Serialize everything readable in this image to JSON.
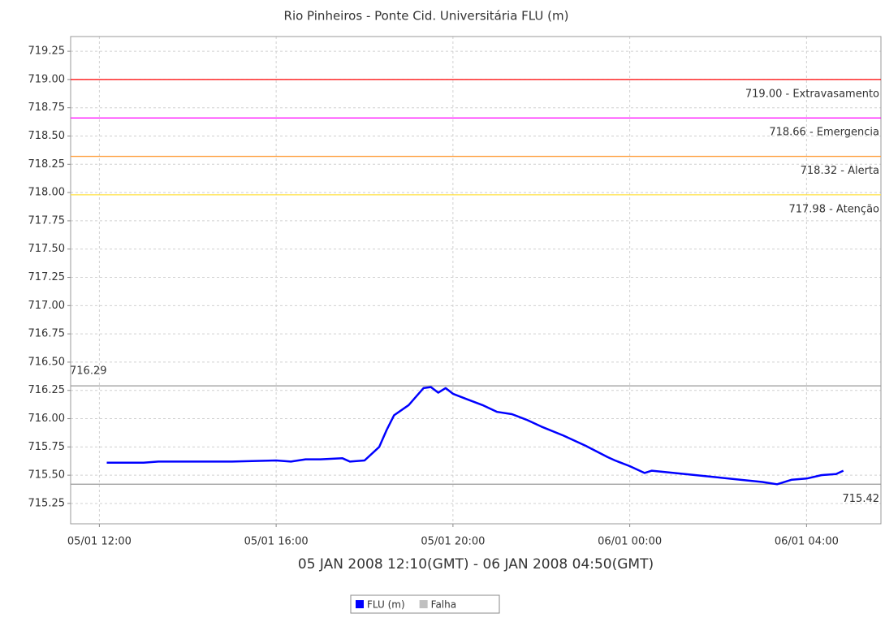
{
  "chart_data": {
    "type": "line",
    "title": "Rio Pinheiros - Ponte Cid. Universitária FLU (m)",
    "xlabel": "05 JAN 2008 12:10(GMT) - 06 JAN 2008 04:50(GMT)",
    "x": [
      "2008-01-05T12:10",
      "2008-01-05T12:40",
      "2008-01-05T13:00",
      "2008-01-05T13:20",
      "2008-01-05T14:00",
      "2008-01-05T15:00",
      "2008-01-05T16:00",
      "2008-01-05T16:20",
      "2008-01-05T16:40",
      "2008-01-05T17:00",
      "2008-01-05T17:30",
      "2008-01-05T17:40",
      "2008-01-05T18:00",
      "2008-01-05T18:20",
      "2008-01-05T18:30",
      "2008-01-05T18:40",
      "2008-01-05T19:00",
      "2008-01-05T19:20",
      "2008-01-05T19:30",
      "2008-01-05T19:40",
      "2008-01-05T19:50",
      "2008-01-05T20:00",
      "2008-01-05T20:20",
      "2008-01-05T20:40",
      "2008-01-05T21:00",
      "2008-01-05T21:20",
      "2008-01-05T21:40",
      "2008-01-05T22:00",
      "2008-01-05T22:30",
      "2008-01-05T23:00",
      "2008-01-05T23:30",
      "2008-01-05T23:40",
      "2008-01-06T00:00",
      "2008-01-06T00:20",
      "2008-01-06T00:30",
      "2008-01-06T01:00",
      "2008-01-06T01:30",
      "2008-01-06T02:00",
      "2008-01-06T02:30",
      "2008-01-06T03:00",
      "2008-01-06T03:20",
      "2008-01-06T03:40",
      "2008-01-06T04:00",
      "2008-01-06T04:20",
      "2008-01-06T04:40",
      "2008-01-06T04:50"
    ],
    "series": [
      {
        "name": "FLU (m)",
        "color": "#0000ff",
        "values": [
          715.61,
          715.61,
          715.61,
          715.62,
          715.62,
          715.62,
          715.63,
          715.62,
          715.64,
          715.64,
          715.65,
          715.62,
          715.63,
          715.75,
          715.9,
          716.03,
          716.12,
          716.27,
          716.28,
          716.23,
          716.27,
          716.22,
          716.17,
          716.12,
          716.06,
          716.04,
          715.99,
          715.93,
          715.85,
          715.76,
          715.66,
          715.63,
          715.58,
          715.52,
          715.54,
          715.52,
          715.5,
          715.48,
          715.46,
          715.44,
          715.42,
          715.46,
          715.47,
          715.5,
          715.51,
          715.54
        ]
      }
    ],
    "legend_items": [
      {
        "name": "Falha",
        "color": "#c0c0c0"
      }
    ],
    "thresholds": [
      {
        "value": 719.0,
        "label": "719.00 - Extravasamento",
        "color": "#ff0000"
      },
      {
        "value": 718.66,
        "label": "718.66 - Emergencia",
        "color": "#ff00ff"
      },
      {
        "value": 718.32,
        "label": "718.32 - Alerta",
        "color": "#ffa040"
      },
      {
        "value": 717.98,
        "label": "717.98 - Atenção",
        "color": "#ffe040"
      }
    ],
    "max_marker": 716.29,
    "min_marker": 715.42,
    "xlim": [
      "2008-01-05T11:21",
      "2008-01-06T05:41"
    ],
    "xticks": [
      {
        "value": "2008-01-05T12:00",
        "label": "05/01 12:00"
      },
      {
        "value": "2008-01-05T16:00",
        "label": "05/01 16:00"
      },
      {
        "value": "2008-01-05T20:00",
        "label": "05/01 20:00"
      },
      {
        "value": "2008-01-06T00:00",
        "label": "06/01 00:00"
      },
      {
        "value": "2008-01-06T04:00",
        "label": "06/01 04:00"
      }
    ],
    "ylim": [
      715.07,
      719.38
    ],
    "yticks": [
      715.25,
      {
        "value": 715.5,
        "label": "715.50"
      },
      715.75,
      {
        "value": 716,
        "label": "716.00"
      },
      716.25,
      {
        "value": 716.5,
        "label": "716.50"
      },
      716.75,
      {
        "value": 717,
        "label": "717.00"
      },
      717.25,
      {
        "value": 717.5,
        "label": "717.50"
      },
      717.75,
      {
        "value": 718,
        "label": "718.00"
      },
      718.25,
      {
        "value": 718.5,
        "label": "718.50"
      },
      718.75,
      {
        "value": 719,
        "label": "719.00"
      },
      719.25
    ],
    "grid": true
  }
}
